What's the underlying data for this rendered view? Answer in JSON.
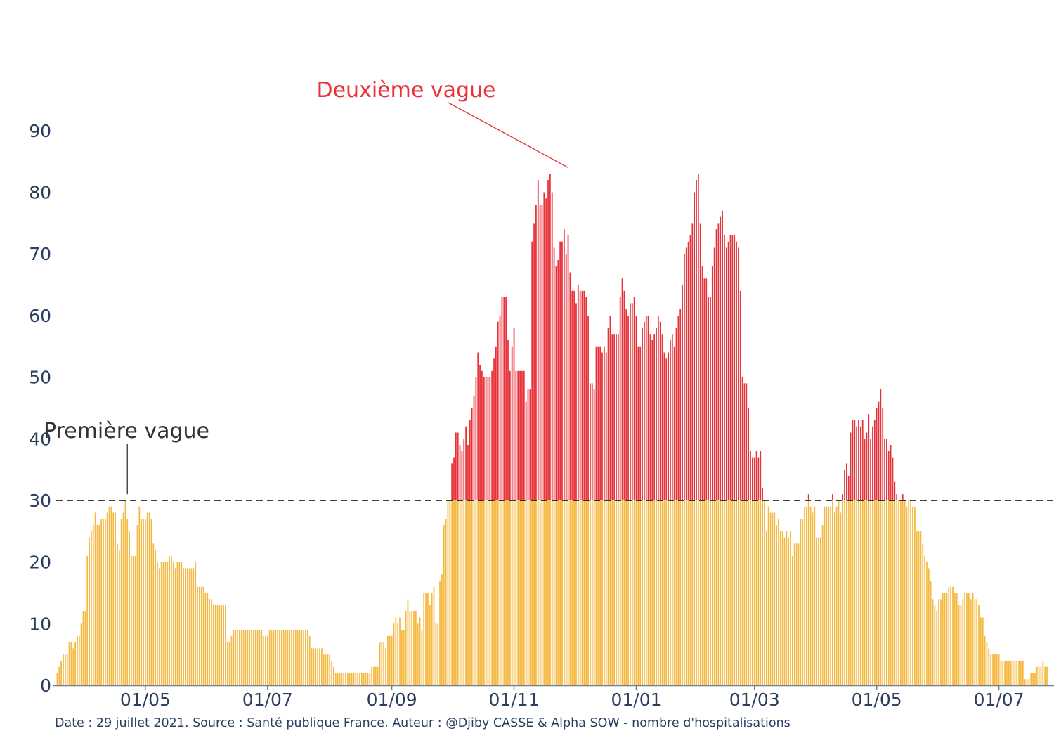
{
  "chart_data": {
    "type": "bar",
    "bar_colors": {
      "below_threshold": "#F5B942",
      "above_threshold": "#E8323A"
    },
    "threshold": {
      "value": 30,
      "style": "dashed",
      "color": "#000000"
    },
    "ylim": [
      0,
      95
    ],
    "y_ticks": [
      {
        "value": 0,
        "label": "0"
      },
      {
        "value": 10,
        "label": "10"
      },
      {
        "value": 20,
        "label": "20"
      },
      {
        "value": 30,
        "label": "30"
      },
      {
        "value": 40,
        "label": "40"
      },
      {
        "value": 50,
        "label": "50"
      },
      {
        "value": 60,
        "label": "60"
      },
      {
        "value": 70,
        "label": "70"
      },
      {
        "value": 80,
        "label": "80"
      },
      {
        "value": 90,
        "label": "90"
      }
    ],
    "x_range": [
      "2020-03-18",
      "2021-07-29"
    ],
    "x_ticks": [
      {
        "date": "2020-05-01",
        "label": "01/05"
      },
      {
        "date": "2020-07-01",
        "label": "01/07"
      },
      {
        "date": "2020-09-01",
        "label": "01/09"
      },
      {
        "date": "2020-11-01",
        "label": "01/11"
      },
      {
        "date": "2021-01-01",
        "label": "01/01"
      },
      {
        "date": "2021-03-01",
        "label": "01/03"
      },
      {
        "date": "2021-05-01",
        "label": "01/05"
      },
      {
        "date": "2021-07-01",
        "label": "01/07"
      }
    ],
    "series": [
      {
        "start_date": "2020-03-18",
        "frequency": "daily",
        "values": [
          2,
          3,
          4,
          5,
          5,
          5,
          7,
          7,
          6,
          7,
          8,
          8,
          10,
          12,
          12,
          21,
          24,
          25,
          26,
          28,
          26,
          26,
          27,
          27,
          27,
          28,
          29,
          29,
          28,
          28,
          23,
          22,
          27,
          28,
          30,
          27,
          25,
          21,
          21,
          21,
          26,
          29,
          27,
          27,
          27,
          28,
          28,
          27,
          23,
          22,
          20,
          19,
          20,
          20,
          20,
          20,
          21,
          21,
          20,
          19,
          20,
          20,
          20,
          19,
          19,
          19,
          19,
          19,
          19,
          20,
          16,
          16,
          16,
          16,
          15,
          15,
          14,
          14,
          13,
          13,
          13,
          13,
          13,
          13,
          13,
          7,
          7,
          8,
          9,
          9,
          9,
          9,
          9,
          9,
          9,
          9,
          9,
          9,
          9,
          9,
          9,
          9,
          9,
          8,
          8,
          8,
          9,
          9,
          9,
          9,
          9,
          9,
          9,
          9,
          9,
          9,
          9,
          9,
          9,
          9,
          9,
          9,
          9,
          9,
          9,
          9,
          8,
          6,
          6,
          6,
          6,
          6,
          6,
          5,
          5,
          5,
          5,
          4,
          3,
          2,
          2,
          2,
          2,
          2,
          2,
          2,
          2,
          2,
          2,
          2,
          2,
          2,
          2,
          2,
          2,
          2,
          2,
          3,
          3,
          3,
          3,
          7,
          7,
          7,
          6,
          8,
          8,
          8,
          10,
          11,
          10,
          11,
          9,
          9,
          12,
          14,
          12,
          12,
          12,
          12,
          10,
          11,
          9,
          15,
          15,
          15,
          13,
          15,
          16,
          10,
          10,
          17,
          18,
          26,
          27,
          30,
          30,
          36,
          37,
          41,
          41,
          39,
          38,
          40,
          42,
          39,
          43,
          45,
          47,
          50,
          54,
          52,
          51,
          50,
          50,
          50,
          50,
          51,
          53,
          55,
          59,
          60,
          63,
          63,
          63,
          56,
          51,
          55,
          58,
          51,
          51,
          51,
          51,
          51,
          46,
          48,
          48,
          72,
          75,
          78,
          82,
          78,
          78,
          80,
          79,
          82,
          83,
          80,
          71,
          68,
          69,
          72,
          72,
          74,
          70,
          73,
          67,
          64,
          64,
          62,
          65,
          64,
          64,
          64,
          63,
          60,
          49,
          49,
          48,
          55,
          55,
          55,
          54,
          55,
          54,
          58,
          60,
          57,
          57,
          57,
          57,
          63,
          66,
          64,
          61,
          60,
          62,
          62,
          63,
          60,
          55,
          55,
          58,
          59,
          60,
          60,
          57,
          56,
          57,
          58,
          60,
          59,
          57,
          54,
          53,
          54,
          56,
          57,
          55,
          58,
          60,
          61,
          65,
          70,
          71,
          72,
          73,
          75,
          80,
          82,
          83,
          75,
          68,
          66,
          66,
          63,
          63,
          68,
          71,
          74,
          75,
          76,
          77,
          73,
          71,
          72,
          73,
          73,
          73,
          72,
          71,
          64,
          50,
          49,
          49,
          45,
          38,
          37,
          37,
          38,
          37,
          38,
          32,
          30,
          25,
          29,
          28,
          28,
          28,
          26,
          27,
          25,
          25,
          24,
          25,
          24,
          25,
          21,
          23,
          23,
          23,
          27,
          27,
          29,
          29,
          31,
          29,
          28,
          29,
          24,
          24,
          24,
          26,
          29,
          29,
          29,
          29,
          31,
          28,
          29,
          30,
          28,
          31,
          35,
          36,
          34,
          41,
          43,
          43,
          42,
          43,
          42,
          43,
          40,
          41,
          44,
          40,
          42,
          43,
          45,
          46,
          48,
          45,
          40,
          40,
          38,
          39,
          37,
          33,
          31,
          30,
          30,
          31,
          30,
          29,
          30,
          30,
          29,
          29,
          25,
          25,
          25,
          23,
          21,
          20,
          19,
          17,
          14,
          13,
          12,
          14,
          14,
          15,
          15,
          15,
          16,
          16,
          16,
          15,
          15,
          13,
          13,
          14,
          15,
          15,
          15,
          14,
          15,
          14,
          14,
          13,
          11,
          11,
          8,
          7,
          6,
          5,
          5,
          5,
          5,
          5,
          4,
          4,
          4,
          4,
          4,
          4,
          4,
          4,
          4,
          4,
          4,
          4,
          1,
          1,
          1,
          2,
          2,
          2,
          3,
          3,
          3,
          4,
          3,
          3
        ]
      }
    ],
    "annotations": [
      {
        "text": "Deuxième vague",
        "color": "#E8323A",
        "date": "2020-11-28",
        "value": 84
      },
      {
        "text": "Première vague",
        "color": "#333333",
        "date": "2020-04-22",
        "value": 31
      }
    ]
  },
  "footer": {
    "text": "Date : 29 juillet 2021. Source : Santé publique France. Auteur : @Djiby CASSE & Alpha SOW - nombre d'hospitalisations"
  }
}
